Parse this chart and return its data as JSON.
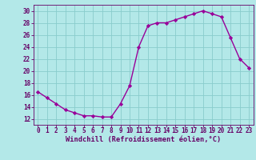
{
  "x": [
    0,
    1,
    2,
    3,
    4,
    5,
    6,
    7,
    8,
    9,
    10,
    11,
    12,
    13,
    14,
    15,
    16,
    17,
    18,
    19,
    20,
    21,
    22,
    23
  ],
  "y": [
    16.5,
    15.5,
    14.5,
    13.5,
    13.0,
    12.5,
    12.5,
    12.3,
    12.3,
    14.5,
    17.5,
    24.0,
    27.5,
    28.0,
    28.0,
    28.5,
    29.0,
    29.5,
    30.0,
    29.5,
    29.0,
    25.5,
    22.0,
    20.5
  ],
  "line_color": "#990099",
  "marker": "D",
  "marker_size": 2.2,
  "bg_color": "#b3e8e8",
  "grid_color": "#88cccc",
  "xlabel": "Windchill (Refroidissement éolien,°C)",
  "tick_color": "#660066",
  "ylim": [
    11,
    31
  ],
  "xlim": [
    -0.5,
    23.5
  ],
  "yticks": [
    12,
    14,
    16,
    18,
    20,
    22,
    24,
    26,
    28,
    30
  ],
  "xticks": [
    0,
    1,
    2,
    3,
    4,
    5,
    6,
    7,
    8,
    9,
    10,
    11,
    12,
    13,
    14,
    15,
    16,
    17,
    18,
    19,
    20,
    21,
    22,
    23
  ],
  "font_family": "monospace",
  "tick_fontsize": 5.5,
  "xlabel_fontsize": 6.2
}
